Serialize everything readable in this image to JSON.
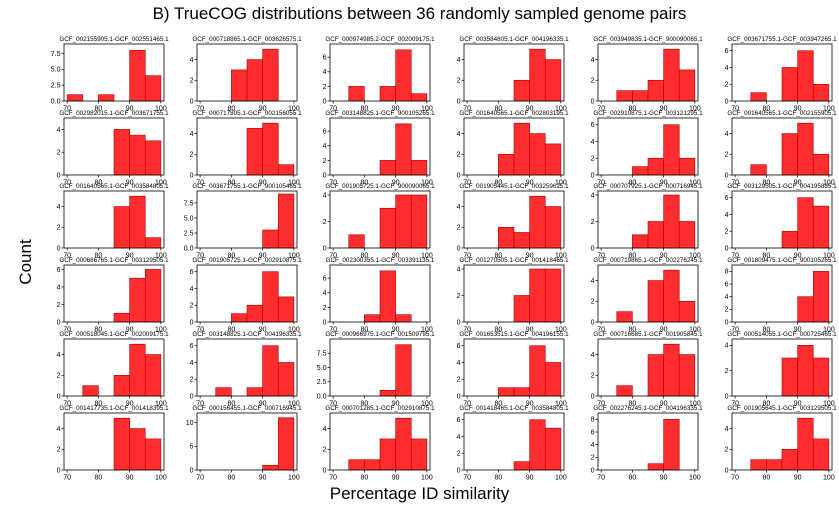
{
  "title": "B) TrueCOG distributions between 36 randomly sampled genome pairs",
  "xlabel": "Percentage ID similarity",
  "ylabel": "Count",
  "colors": {
    "bar_fill": "#ff2d2d",
    "bar_edge": "#b00000"
  },
  "chart_data": {
    "type": "bar",
    "layout": "6x6 grid of histograms",
    "bin_edges": [
      70,
      75,
      80,
      85,
      90,
      95,
      100
    ],
    "xticks": [
      70,
      80,
      90,
      100
    ],
    "xlim": [
      69,
      101
    ],
    "panels": [
      {
        "title": "GCF_002155905.1-GCF_002551465.1",
        "counts": [
          1,
          0,
          1,
          0,
          8,
          4
        ],
        "ylim": [
          0,
          9
        ],
        "yticks": [
          "0.0",
          "2.5",
          "5.0",
          "7.5"
        ],
        "ytick_values": [
          0,
          2.5,
          5,
          7.5
        ]
      },
      {
        "title": "GCF_000718865.1-GCF_003626575.1",
        "counts": [
          0,
          0,
          3,
          4,
          5,
          0
        ],
        "ylim": [
          0,
          5.5
        ],
        "yticks": [
          "0",
          "2",
          "4"
        ],
        "ytick_values": [
          0,
          2,
          4
        ]
      },
      {
        "title": "GCF_000974985.2-GCF_002009175.1",
        "counts": [
          0,
          2,
          0,
          2,
          7,
          1
        ],
        "ylim": [
          0,
          7.8
        ],
        "yticks": [
          "0",
          "2",
          "4",
          "6"
        ],
        "ytick_values": [
          0,
          2,
          4,
          6
        ]
      },
      {
        "title": "GCF_003584805.1-GCF_004196335.1",
        "counts": [
          0,
          0,
          0,
          2,
          5,
          4
        ],
        "ylim": [
          0,
          5.5
        ],
        "yticks": [
          "0",
          "2",
          "4"
        ],
        "ytick_values": [
          0,
          2,
          4
        ]
      },
      {
        "title": "GCF_003949835.1-GCF_900090065.1",
        "counts": [
          0,
          1,
          1,
          2,
          5,
          3
        ],
        "ylim": [
          0,
          5.5
        ],
        "yticks": [
          "0",
          "2",
          "4"
        ],
        "ytick_values": [
          0,
          2,
          4
        ]
      },
      {
        "title": "GCF_003671755.1-GCF_003947265.1",
        "counts": [
          0,
          1,
          0,
          4,
          6,
          2
        ],
        "ylim": [
          0,
          6.8
        ],
        "yticks": [
          "0",
          "2",
          "4",
          "6"
        ],
        "ytick_values": [
          0,
          2,
          4,
          6
        ]
      },
      {
        "title": "GCF_002982015.1-GCF_003671755.1",
        "counts": [
          0,
          0,
          0,
          4,
          3.5,
          3
        ],
        "ylim": [
          0,
          5
        ],
        "yticks": [
          "0",
          "2",
          "4"
        ],
        "ytick_values": [
          0,
          2,
          4
        ]
      },
      {
        "title": "GCF_000717805.1-GCF_002156055.1",
        "counts": [
          0,
          0,
          0,
          4.5,
          5,
          1
        ],
        "ylim": [
          0,
          5.5
        ],
        "yticks": [
          "0",
          "2",
          "4"
        ],
        "ytick_values": [
          0,
          2,
          4
        ]
      },
      {
        "title": "GCF_003148825.1-GCF_900105265.1",
        "counts": [
          0,
          0,
          0,
          2,
          7,
          2
        ],
        "ylim": [
          0,
          7.8
        ],
        "yticks": [
          "0",
          "2",
          "4",
          "6"
        ],
        "ytick_values": [
          0,
          2,
          4,
          6
        ]
      },
      {
        "title": "GCF_001640565.1-GCF_002803195.1",
        "counts": [
          0,
          0,
          2,
          5,
          4,
          3
        ],
        "ylim": [
          0,
          5.5
        ],
        "yticks": [
          "0",
          "2",
          "4"
        ],
        "ytick_values": [
          0,
          2,
          4
        ]
      },
      {
        "title": "GCF_002910875.1-GCF_003121295.1",
        "counts": [
          0,
          0,
          1,
          2,
          6,
          2
        ],
        "ylim": [
          0,
          6.8
        ],
        "yticks": [
          "0",
          "2",
          "4",
          "6"
        ],
        "ytick_values": [
          0,
          2,
          4,
          6
        ]
      },
      {
        "title": "GCF_001640565.1-GCF_002155905.1",
        "counts": [
          0,
          1,
          0,
          4,
          5,
          2
        ],
        "ylim": [
          0,
          5.5
        ],
        "yticks": [
          "0",
          "2",
          "4"
        ],
        "ytick_values": [
          0,
          2,
          4
        ]
      },
      {
        "title": "GCF_001640565.1-GCF_003584805.1",
        "counts": [
          0,
          0,
          0,
          4,
          5,
          1
        ],
        "ylim": [
          0,
          5.5
        ],
        "yticks": [
          "0",
          "2",
          "4"
        ],
        "ytick_values": [
          0,
          2,
          4
        ]
      },
      {
        "title": "GCF_003671755.1-GCF_900105465.1",
        "counts": [
          0,
          0,
          0,
          0,
          3,
          9
        ],
        "ylim": [
          0,
          9.5
        ],
        "yticks": [
          "0.0",
          "2.5",
          "5.0",
          "7.5"
        ],
        "ytick_values": [
          0,
          2.5,
          5,
          7.5
        ]
      },
      {
        "title": "GCF_001905725.1-GCF_900090065.1",
        "counts": [
          0,
          1,
          0,
          3,
          4,
          4
        ],
        "ylim": [
          0,
          4.3
        ],
        "yticks": [
          "0",
          "2",
          "4"
        ],
        "ytick_values": [
          0,
          2,
          4
        ]
      },
      {
        "title": "GCF_001905445.1-GCF_003259625.1",
        "counts": [
          0,
          0,
          2,
          1.5,
          5,
          4
        ],
        "ylim": [
          0,
          5.5
        ],
        "yticks": [
          "0",
          "2",
          "4"
        ],
        "ytick_values": [
          0,
          2,
          4
        ]
      },
      {
        "title": "GCF_000707925.1-GCF_000716945.1",
        "counts": [
          0,
          0,
          1,
          2,
          4,
          2
        ],
        "ylim": [
          0,
          4.3
        ],
        "yticks": [
          "0",
          "2",
          "4"
        ],
        "ytick_values": [
          0,
          2,
          4
        ]
      },
      {
        "title": "GCF_003129505.1-GCF_004195885.1",
        "counts": [
          0,
          0,
          0,
          2,
          6,
          5
        ],
        "ylim": [
          0,
          6.8
        ],
        "yticks": [
          "0",
          "2",
          "4",
          "6"
        ],
        "ytick_values": [
          0,
          2,
          4,
          6
        ]
      },
      {
        "title": "GCF_000686765.1-GCF_003129505.1",
        "counts": [
          0,
          0,
          0,
          1,
          5,
          6
        ],
        "ylim": [
          0,
          6.5
        ],
        "yticks": [
          "0",
          "2",
          "4",
          "6"
        ],
        "ytick_values": [
          0,
          2,
          4,
          6
        ]
      },
      {
        "title": "GCF_001905725.1-GCF_002910875.1",
        "counts": [
          0,
          0,
          1,
          2,
          6,
          3
        ],
        "ylim": [
          0,
          6.8
        ],
        "yticks": [
          "0",
          "2",
          "4",
          "6"
        ],
        "ytick_values": [
          0,
          2,
          4,
          6
        ]
      },
      {
        "title": "GCF_002300355.1-GCF_003391135.1",
        "counts": [
          0,
          0,
          1,
          7,
          1,
          0
        ],
        "ylim": [
          0,
          7.8
        ],
        "yticks": [
          "0",
          "2",
          "4",
          "6"
        ],
        "ytick_values": [
          0,
          2,
          4,
          6
        ]
      },
      {
        "title": "GCF_001270505.1-GCF_001418465.1",
        "counts": [
          0,
          0,
          0,
          2,
          4,
          4
        ],
        "ylim": [
          0,
          4.3
        ],
        "yticks": [
          "0",
          "2",
          "4"
        ],
        "ytick_values": [
          0,
          2,
          4
        ]
      },
      {
        "title": "GCF_000719865.1-GCF_002276245.1",
        "counts": [
          0,
          1,
          0,
          4,
          5,
          2
        ],
        "ylim": [
          0,
          5.5
        ],
        "yticks": [
          "0",
          "2",
          "4"
        ],
        "ytick_values": [
          0,
          2,
          4
        ]
      },
      {
        "title": "GCF_001809475.1-GCF_900105265.1",
        "counts": [
          0,
          0,
          0,
          0,
          4,
          8
        ],
        "ylim": [
          0,
          9
        ],
        "yticks": [
          "0",
          "2",
          "4",
          "6",
          "8"
        ],
        "ytick_values": [
          0,
          2,
          4,
          6,
          8
        ]
      },
      {
        "title": "GCF_000518045.1-GCF_002009175.1",
        "counts": [
          0,
          1,
          0,
          2,
          5,
          4
        ],
        "ylim": [
          0,
          5.5
        ],
        "yticks": [
          "0",
          "2",
          "4"
        ],
        "ytick_values": [
          0,
          2,
          4
        ]
      },
      {
        "title": "GCF_003148825.1-GCF_004196335.1",
        "counts": [
          0,
          1,
          0,
          1,
          6,
          4
        ],
        "ylim": [
          0,
          6.8
        ],
        "yticks": [
          "0",
          "2",
          "4",
          "6"
        ],
        "ytick_values": [
          0,
          2,
          4,
          6
        ]
      },
      {
        "title": "GCF_000966975.1-GCF_001509795.1",
        "counts": [
          0,
          0,
          0,
          1,
          9,
          0
        ],
        "ylim": [
          0,
          10
        ],
        "yticks": [
          "0.0",
          "2.5",
          "5.0",
          "7.5"
        ],
        "ytick_values": [
          0,
          2.5,
          5,
          7.5
        ]
      },
      {
        "title": "GCF_001653515.1-GCF_004196155.1",
        "counts": [
          0,
          0,
          1,
          1,
          6,
          4
        ],
        "ylim": [
          0,
          6.8
        ],
        "yticks": [
          "0",
          "2",
          "4",
          "6"
        ],
        "ytick_values": [
          0,
          2,
          4,
          6
        ]
      },
      {
        "title": "GCF_000716685.1-GCF_001905845.1",
        "counts": [
          0,
          1,
          0,
          4,
          5,
          4
        ],
        "ylim": [
          0,
          5.5
        ],
        "yticks": [
          "0",
          "2",
          "4"
        ],
        "ytick_values": [
          0,
          2,
          4
        ]
      },
      {
        "title": "GCF_000514055.1-GCF_000725465.1",
        "counts": [
          0,
          0,
          0,
          3,
          4,
          3
        ],
        "ylim": [
          0,
          4.5
        ],
        "yticks": [
          "0",
          "2",
          "4"
        ],
        "ytick_values": [
          0,
          2,
          4
        ]
      },
      {
        "title": "GCF_001417735.1-GCF_001418395.1",
        "counts": [
          0,
          0,
          0,
          5,
          4,
          3
        ],
        "ylim": [
          0,
          5.5
        ],
        "yticks": [
          "0",
          "2",
          "4"
        ],
        "ytick_values": [
          0,
          2,
          4
        ]
      },
      {
        "title": "GCF_000156455.1-GCF_000716945.1",
        "counts": [
          0,
          0,
          0,
          0,
          1,
          11
        ],
        "ylim": [
          0,
          12
        ],
        "yticks": [
          "0",
          "5",
          "10"
        ],
        "ytick_values": [
          0,
          5,
          10
        ]
      },
      {
        "title": "GCF_000701285.1-GCF_002910875.1",
        "counts": [
          0,
          1,
          1,
          3,
          5,
          3
        ],
        "ylim": [
          0,
          5.5
        ],
        "yticks": [
          "0",
          "2",
          "4"
        ],
        "ytick_values": [
          0,
          2,
          4
        ]
      },
      {
        "title": "GCF_001418465.1-GCF_003584805.1",
        "counts": [
          0,
          0,
          0,
          1,
          6,
          5
        ],
        "ylim": [
          0,
          6.8
        ],
        "yticks": [
          "0",
          "2",
          "4",
          "6"
        ],
        "ytick_values": [
          0,
          2,
          4,
          6
        ]
      },
      {
        "title": "GCF_002276245.1-GCF_004196335.1",
        "counts": [
          0,
          0,
          0,
          1,
          8,
          0
        ],
        "ylim": [
          0,
          9
        ],
        "yticks": [
          "0",
          "2",
          "4",
          "6",
          "8"
        ],
        "ytick_values": [
          0,
          2,
          4,
          6,
          8
        ]
      },
      {
        "title": "GCF_001905645.1-GCF_003129505.1",
        "counts": [
          0,
          1,
          1,
          2,
          5,
          3
        ],
        "ylim": [
          0,
          5.5
        ],
        "yticks": [
          "0",
          "2",
          "4"
        ],
        "ytick_values": [
          0,
          2,
          4
        ]
      }
    ]
  }
}
